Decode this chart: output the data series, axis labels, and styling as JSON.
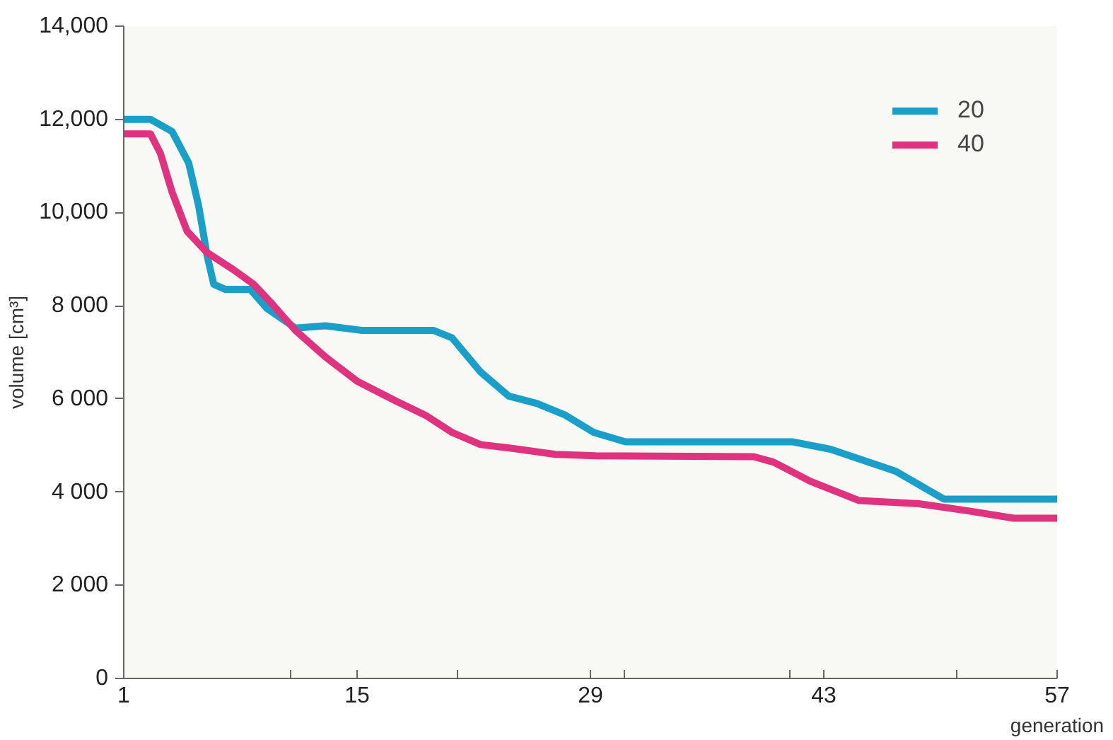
{
  "chart_data": {
    "type": "line",
    "xlabel": "generation",
    "ylabel": "volume [cm³]",
    "xlim": [
      1,
      57
    ],
    "ylim": [
      0,
      14000
    ],
    "xticks": [
      1,
      {
        "value": 11,
        "label": null
      },
      15,
      {
        "value": 21,
        "label": null
      },
      29,
      {
        "value": 31,
        "label": null
      },
      {
        "value": 41,
        "label": null
      },
      43,
      {
        "value": 51,
        "label": null
      },
      57
    ],
    "yticks": [
      0,
      {
        "value": 2000,
        "label": "2 000"
      },
      {
        "value": 4000,
        "label": "4 000"
      },
      {
        "value": 6000,
        "label": "6 000"
      },
      {
        "value": 8000,
        "label": "8 000"
      },
      {
        "value": 10000,
        "label": "10,000"
      },
      {
        "value": 12000,
        "label": "12,000"
      },
      {
        "value": 14000,
        "label": "14,000"
      }
    ],
    "grid": false,
    "legend": "top right",
    "marker": "none",
    "line_style": "solid",
    "series": [
      {
        "name": "20",
        "color": "#1aa0c8",
        "x": [
          1,
          2.6,
          3.9,
          4.9,
          5.5,
          6.0,
          6.4,
          7.1,
          8.6,
          9.6,
          11.3,
          13.1,
          15.3,
          19.6,
          20.7,
          22.4,
          24.1,
          25.8,
          27.5,
          29.2,
          31.1,
          41.1,
          43.4,
          47.3,
          50.2,
          53.0,
          57
        ],
        "values": [
          12000,
          12000,
          11740,
          11060,
          10130,
          9080,
          8460,
          8350,
          8350,
          7940,
          7520,
          7570,
          7470,
          7470,
          7310,
          6580,
          6060,
          5900,
          5650,
          5280,
          5080,
          5080,
          4920,
          4450,
          3850,
          3850,
          3850
        ]
      },
      {
        "name": "40",
        "color": "#e0337f",
        "x": [
          1,
          2.6,
          3.2,
          3.9,
          4.8,
          6.0,
          7.6,
          8.8,
          9.9,
          11.3,
          13.1,
          15.0,
          17.3,
          19.1,
          20.7,
          22.4,
          24.3,
          26.9,
          29.3,
          38.8,
          40.0,
          42.2,
          45.1,
          48.7,
          51.6,
          54.4,
          57
        ],
        "values": [
          11690,
          11690,
          11270,
          10440,
          9600,
          9140,
          8770,
          8460,
          8040,
          7470,
          6900,
          6380,
          5960,
          5650,
          5280,
          5020,
          4940,
          4810,
          4780,
          4760,
          4640,
          4230,
          3820,
          3750,
          3600,
          3440,
          3440
        ]
      }
    ]
  }
}
